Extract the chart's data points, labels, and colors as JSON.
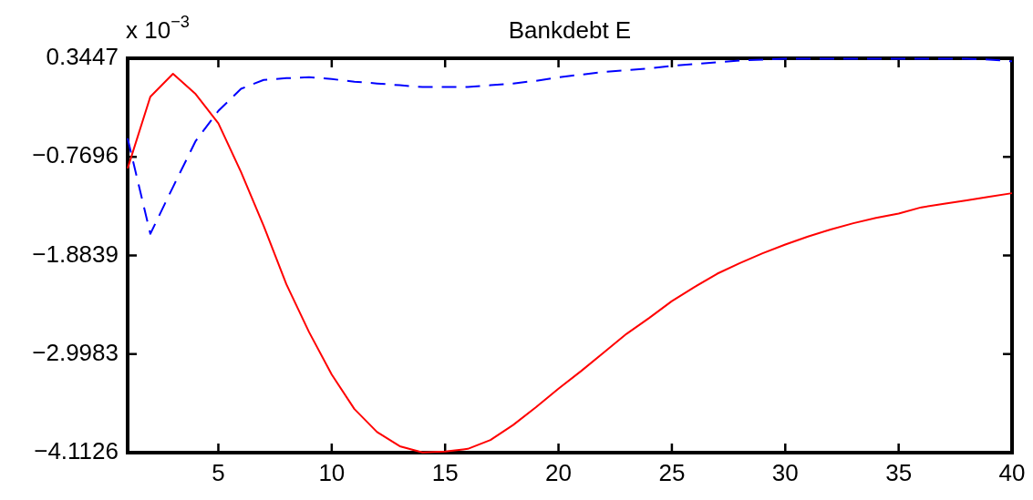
{
  "chart_data": {
    "type": "line",
    "title": "Bankdebt E",
    "annotations": [
      "x 10$^{−3}$"
    ],
    "x": [
      1,
      2,
      3,
      4,
      5,
      6,
      7,
      8,
      9,
      10,
      11,
      12,
      13,
      14,
      15,
      16,
      17,
      18,
      19,
      20,
      21,
      22,
      23,
      24,
      25,
      26,
      27,
      28,
      29,
      30,
      31,
      32,
      33,
      34,
      35,
      36,
      37,
      38,
      39,
      40
    ],
    "series": [
      {
        "color": "#ff0000",
        "line_style": "solid",
        "values": [
          -0.9,
          -0.09,
          0.17,
          -0.06,
          -0.39,
          -0.94,
          -1.55,
          -2.21,
          -2.75,
          -3.23,
          -3.62,
          -3.88,
          -4.04,
          -4.11,
          -4.1,
          -4.07,
          -3.97,
          -3.8,
          -3.6,
          -3.39,
          -3.19,
          -2.98,
          -2.77,
          -2.59,
          -2.4,
          -2.24,
          -2.09,
          -1.97,
          -1.86,
          -1.76,
          -1.67,
          -1.59,
          -1.52,
          -1.46,
          -1.41,
          -1.34,
          -1.3,
          -1.26,
          -1.22,
          -1.18
        ]
      },
      {
        "color": "#0000ff",
        "line_style": "dashed",
        "values": [
          -0.56,
          -1.64,
          -1.11,
          -0.59,
          -0.25,
          0.0,
          0.1,
          0.12,
          0.13,
          0.11,
          0.08,
          0.06,
          0.04,
          0.02,
          0.02,
          0.02,
          0.04,
          0.06,
          0.09,
          0.13,
          0.16,
          0.19,
          0.21,
          0.23,
          0.26,
          0.28,
          0.3,
          0.32,
          0.33,
          0.34,
          0.34,
          0.34,
          0.34,
          0.34,
          0.34,
          0.34,
          0.34,
          0.34,
          0.33,
          0.31
        ]
      }
    ],
    "xlim": [
      1,
      40
    ],
    "xticks": [
      5,
      10,
      15,
      20,
      25,
      30,
      35,
      40
    ],
    "ylim": [
      -4.1126,
      0.3447
    ],
    "yticks": [
      -4.1126,
      -2.9983,
      -1.8839,
      -0.7696,
      0.3447
    ],
    "grid": false,
    "legend": false,
    "marker": "none"
  }
}
